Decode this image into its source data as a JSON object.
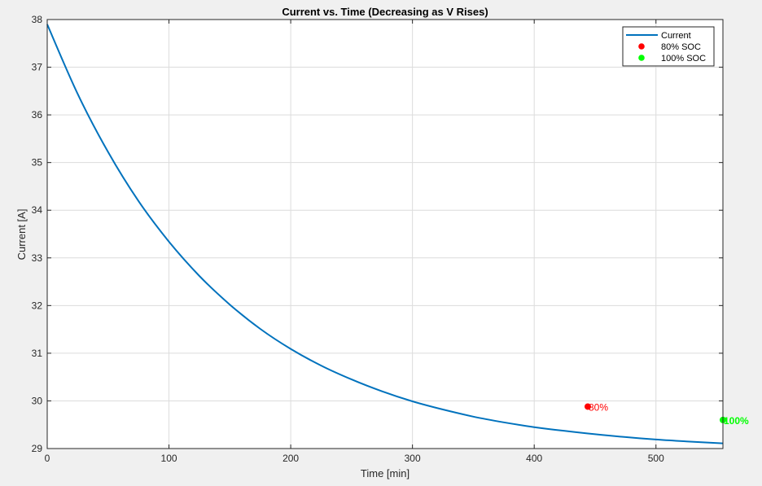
{
  "colors": {
    "figure_bg": "#f0f0f0",
    "axes_bg": "#ffffff",
    "grid": "#dcdcdc",
    "axis": "#262626",
    "line": "#0072bd",
    "soc80": "#ff0000",
    "soc100": "#00ff00"
  },
  "chart_data": {
    "type": "line",
    "title": "Current vs. Time (Decreasing as V Rises)",
    "xlabel": "Time [min]",
    "ylabel": "Current [A]",
    "xlim": [
      0,
      555
    ],
    "ylim": [
      29,
      38
    ],
    "xticks": [
      0,
      100,
      200,
      300,
      400,
      500
    ],
    "yticks": [
      29,
      30,
      31,
      32,
      33,
      34,
      35,
      36,
      37,
      38
    ],
    "grid": true,
    "legend_location": "top-right",
    "series": [
      {
        "name": "Current",
        "x": [
          0,
          25,
          50,
          75,
          100,
          125,
          150,
          175,
          200,
          225,
          250,
          275,
          300,
          325,
          350,
          375,
          400,
          425,
          450,
          475,
          500,
          525,
          555
        ],
        "y": [
          37.9,
          36.44,
          35.22,
          34.19,
          33.34,
          32.62,
          32.02,
          31.51,
          31.09,
          30.74,
          30.45,
          30.2,
          29.99,
          29.82,
          29.67,
          29.55,
          29.45,
          29.37,
          29.3,
          29.24,
          29.19,
          29.15,
          29.11
        ]
      },
      {
        "name": "80% SOC",
        "marker": "dot",
        "x": [
          444
        ],
        "y": [
          29.88
        ],
        "label": "80%"
      },
      {
        "name": "100% SOC",
        "marker": "dot",
        "x": [
          555
        ],
        "y": [
          29.6
        ],
        "label": "100%"
      }
    ]
  }
}
